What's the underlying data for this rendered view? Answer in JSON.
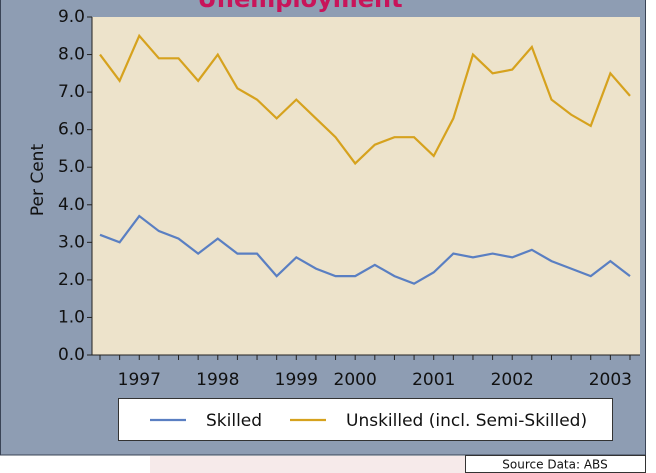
{
  "chart_data": {
    "type": "line",
    "title": "Unemployment",
    "y_label": "Per Cent",
    "source": "Source Data: ABS",
    "categories": [
      null,
      null,
      "1997",
      null,
      null,
      null,
      "1998",
      null,
      null,
      null,
      "1999",
      null,
      null,
      "2000",
      null,
      null,
      null,
      "2001",
      null,
      null,
      null,
      "2002",
      null,
      null,
      null,
      null,
      "2003",
      null
    ],
    "series": [
      {
        "name": "Skilled",
        "color": "#5a7fc2",
        "values": [
          3.2,
          3.0,
          3.7,
          3.3,
          3.1,
          2.7,
          3.1,
          2.7,
          2.7,
          2.1,
          2.6,
          2.3,
          2.1,
          2.1,
          2.4,
          2.1,
          1.9,
          2.2,
          2.7,
          2.6,
          2.7,
          2.6,
          2.8,
          2.5,
          2.3,
          2.1,
          2.5,
          2.1
        ]
      },
      {
        "name": "Unskilled (incl. Semi-Skilled)",
        "color": "#d6a21e",
        "values": [
          8.0,
          7.3,
          8.5,
          7.9,
          7.9,
          7.3,
          8.0,
          7.1,
          6.8,
          6.3,
          6.8,
          6.3,
          5.8,
          5.1,
          5.6,
          5.8,
          5.8,
          5.3,
          6.3,
          8.0,
          7.5,
          7.6,
          8.2,
          6.8,
          6.4,
          6.1,
          7.5,
          6.9
        ]
      }
    ],
    "ylim": [
      0,
      9
    ],
    "yticks": [
      {
        "value": 0,
        "label": "0.0"
      },
      {
        "value": 1,
        "label": "1.0"
      },
      {
        "value": 2,
        "label": "2.0"
      },
      {
        "value": 3,
        "label": "3.0"
      },
      {
        "value": 4,
        "label": "4.0"
      },
      {
        "value": 5,
        "label": "5.0"
      },
      {
        "value": 6,
        "label": "6.0"
      },
      {
        "value": 7,
        "label": "7.0"
      },
      {
        "value": 8,
        "label": "8.0"
      },
      {
        "value": 9,
        "label": "9.0"
      }
    ],
    "grid": false
  }
}
